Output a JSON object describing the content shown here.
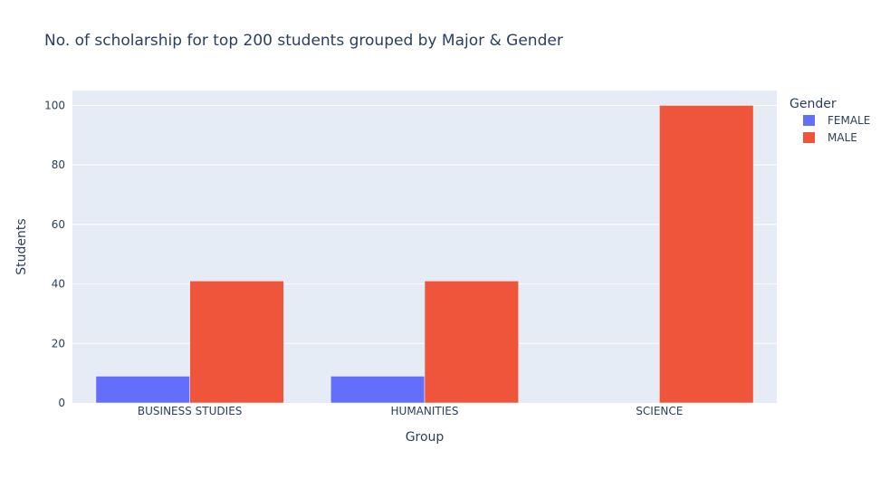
{
  "chart_data": {
    "type": "bar",
    "title": "No. of scholarship for top 200 students grouped by Major & Gender",
    "xlabel": "Group",
    "ylabel": "Students",
    "categories": [
      "BUSINESS STUDIES",
      "HUMANITIES",
      "SCIENCE"
    ],
    "ylim": [
      0,
      105
    ],
    "yticks": [
      0,
      20,
      40,
      60,
      80,
      100
    ],
    "grid": true,
    "legend": {
      "title": "Gender",
      "placement": "top-right"
    },
    "series": [
      {
        "name": "FEMALE",
        "color": "#636efa",
        "values": [
          9,
          9,
          0
        ]
      },
      {
        "name": "MALE",
        "color": "#ef553b",
        "values": [
          41,
          41,
          100
        ]
      }
    ],
    "colors": {
      "plot_background": "#e5ecf6",
      "grid": "#ffffff",
      "text": "#2a3f5f"
    }
  }
}
